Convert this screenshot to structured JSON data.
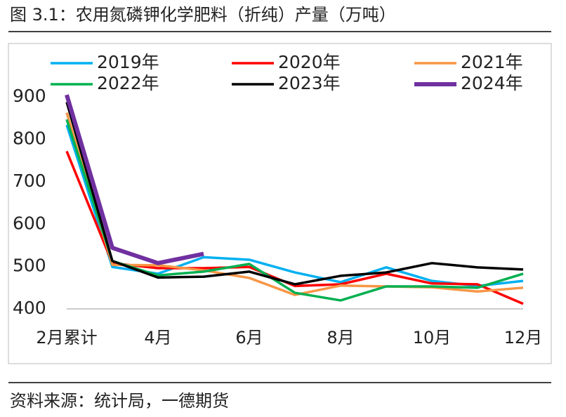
{
  "chart_data": {
    "type": "line",
    "title": "图 3.1：农用氮磷钾化学肥料（折纯）产量（万吨）",
    "source": "资料来源：统计局，一德期货",
    "categories": [
      "2月累计",
      null,
      "4月",
      null,
      "6月",
      null,
      "8月",
      null,
      "10月",
      null,
      "12月"
    ],
    "series": [
      {
        "name": "2019年",
        "color": "#00b0f0",
        "values": [
          834,
          499,
          483,
          522,
          516,
          486,
          463,
          498,
          466,
          454,
          466
        ]
      },
      {
        "name": "2020年",
        "color": "#ff0000",
        "values": [
          772,
          508,
          496,
          496,
          499,
          454,
          458,
          483,
          460,
          458,
          412
        ]
      },
      {
        "name": "2021年",
        "color": "#f79646",
        "values": [
          863,
          504,
          503,
          491,
          473,
          433,
          455,
          453,
          451,
          441,
          450
        ]
      },
      {
        "name": "2022年",
        "color": "#00b050",
        "values": [
          847,
          513,
          479,
          488,
          506,
          438,
          420,
          453,
          453,
          450,
          483
        ]
      },
      {
        "name": "2023年",
        "color": "#000000",
        "values": [
          888,
          513,
          474,
          476,
          488,
          458,
          478,
          486,
          508,
          498,
          493
        ]
      },
      {
        "name": "2024年",
        "color": "#7030a0",
        "values": [
          905,
          544,
          508,
          530,
          null,
          null,
          null,
          null,
          null,
          null,
          null
        ]
      }
    ],
    "ylim": [
      400,
      950
    ],
    "yticks": [
      400,
      500,
      600,
      700,
      800,
      900
    ],
    "grid": false
  }
}
